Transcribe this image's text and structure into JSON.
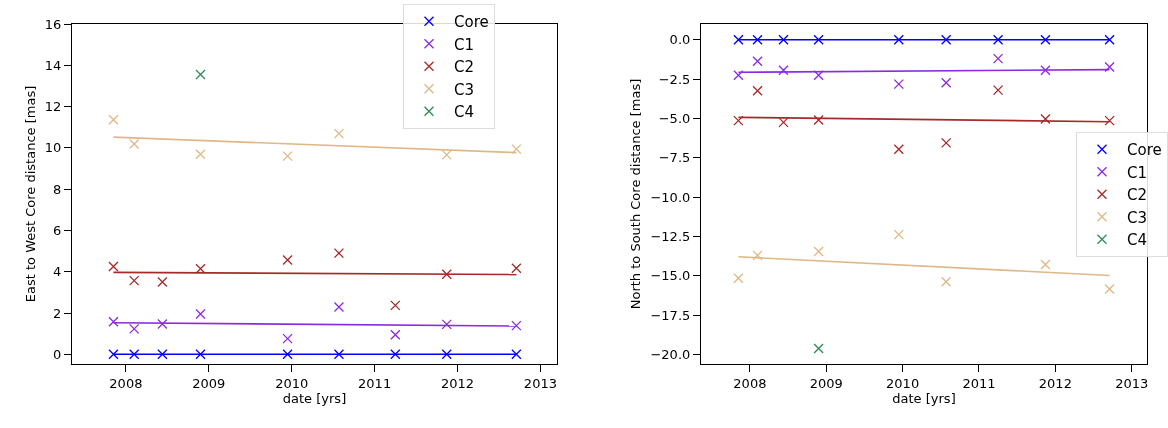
{
  "chart_data": [
    {
      "type": "scatter",
      "xlabel": "date [yrs]",
      "ylabel": "East to West Core distance [mas]",
      "xlim": [
        2007.35,
        2013.2
      ],
      "xticks": [
        2008,
        2009,
        2010,
        2011,
        2012,
        2013
      ],
      "ylim": [
        -0.47,
        16
      ],
      "yticks": [
        0,
        2,
        4,
        6,
        8,
        10,
        12,
        14,
        16
      ],
      "legend": "top right",
      "marker": "cross",
      "series": [
        {
          "name": "Core",
          "color": "#0000ff",
          "x": [
            2007.85,
            2008.1,
            2008.44,
            2008.9,
            2009.95,
            2010.57,
            2011.25,
            2011.87,
            2012.71
          ],
          "values": [
            0,
            0,
            0,
            0,
            0,
            0,
            0,
            0,
            0
          ]
        },
        {
          "name": "C1",
          "color": "#8a2be2",
          "x": [
            2007.85,
            2008.1,
            2008.44,
            2008.9,
            2009.95,
            2010.57,
            2011.25,
            2011.87,
            2012.71
          ],
          "values": [
            1.58,
            1.23,
            1.47,
            1.95,
            0.76,
            2.29,
            0.95,
            1.45,
            1.39
          ]
        },
        {
          "name": "C2",
          "color": "#a52a2a",
          "x": [
            2007.85,
            2008.1,
            2008.44,
            2008.9,
            2009.95,
            2010.57,
            2011.25,
            2011.87,
            2012.71
          ],
          "values": [
            4.25,
            3.57,
            3.5,
            4.14,
            4.57,
            4.9,
            2.37,
            3.88,
            4.17
          ]
        },
        {
          "name": "C3",
          "color": "#deb887",
          "x": [
            2007.85,
            2008.1,
            2008.9,
            2009.95,
            2010.57,
            2011.87,
            2012.71
          ],
          "values": [
            11.36,
            10.19,
            9.69,
            9.6,
            10.69,
            9.66,
            9.94
          ]
        },
        {
          "name": "C4",
          "color": "#2e8b57",
          "x": [
            2008.9
          ],
          "values": [
            13.55
          ]
        },
        {
          "type": "line",
          "marker": "none",
          "color": "#0000ff",
          "x": [
            2007.85,
            2012.71
          ],
          "values": [
            0,
            0
          ]
        },
        {
          "type": "line",
          "marker": "none",
          "color": "#8a2be2",
          "x": [
            2007.85,
            2012.71
          ],
          "values": [
            1.53,
            1.37
          ]
        },
        {
          "type": "line",
          "marker": "none",
          "color": "#a52a2a",
          "x": [
            2007.85,
            2012.71
          ],
          "values": [
            3.97,
            3.86
          ]
        },
        {
          "type": "line",
          "marker": "none",
          "color": "#deb887",
          "x": [
            2007.85,
            2012.71
          ],
          "values": [
            10.52,
            9.77
          ]
        }
      ]
    },
    {
      "type": "scatter",
      "xlabel": "date [yrs]",
      "ylabel": "North to South Core distance [mas]",
      "xlim": [
        2007.36,
        2013.2
      ],
      "xticks": [
        2008,
        2009,
        2010,
        2011,
        2012,
        2013
      ],
      "ylim": [
        -20.6,
        1.0
      ],
      "yticks": [
        {
          "value": 0,
          "label": "0.0"
        },
        {
          "value": -2.5,
          "label": "−2.5"
        },
        {
          "value": -5,
          "label": "−5.0"
        },
        {
          "value": -7.5,
          "label": "−7.5"
        },
        {
          "value": -10,
          "label": "−10.0"
        },
        {
          "value": -12.5,
          "label": "−12.5"
        },
        {
          "value": -15,
          "label": "−15.0"
        },
        {
          "value": -17.5,
          "label": "−17.5"
        },
        {
          "value": -20,
          "label": "−20.0"
        }
      ],
      "legend": "right",
      "marker": "cross",
      "series": [
        {
          "name": "Core",
          "color": "#0000ff",
          "x": [
            2007.85,
            2008.1,
            2008.44,
            2008.9,
            2009.95,
            2010.57,
            2011.25,
            2011.87,
            2012.71
          ],
          "values": [
            0,
            0,
            0,
            0,
            0,
            0,
            0,
            0,
            0
          ]
        },
        {
          "name": "C1",
          "color": "#8a2be2",
          "x": [
            2007.85,
            2008.1,
            2008.44,
            2008.9,
            2009.95,
            2010.57,
            2011.25,
            2011.87,
            2012.71
          ],
          "values": [
            -2.26,
            -1.37,
            -1.94,
            -2.26,
            -2.82,
            -2.73,
            -1.2,
            -1.94,
            -1.73
          ]
        },
        {
          "name": "C2",
          "color": "#a52a2a",
          "x": [
            2007.85,
            2008.1,
            2008.44,
            2008.9,
            2009.95,
            2010.57,
            2011.25,
            2011.87,
            2012.71
          ],
          "values": [
            -5.14,
            -3.24,
            -5.25,
            -5.1,
            -6.96,
            -6.55,
            -3.2,
            -5.04,
            -5.14
          ]
        },
        {
          "name": "C3",
          "color": "#deb887",
          "x": [
            2007.85,
            2008.1,
            2008.9,
            2009.95,
            2010.57,
            2011.87,
            2012.71
          ],
          "values": [
            -15.15,
            -13.7,
            -13.45,
            -12.38,
            -15.37,
            -14.28,
            -15.84
          ]
        },
        {
          "name": "C4",
          "color": "#2e8b57",
          "x": [
            2008.9
          ],
          "values": [
            -19.62
          ]
        },
        {
          "type": "line",
          "marker": "none",
          "color": "#0000ff",
          "x": [
            2007.85,
            2012.71
          ],
          "values": [
            0,
            0
          ]
        },
        {
          "type": "line",
          "marker": "none",
          "color": "#8a2be2",
          "x": [
            2007.85,
            2012.71
          ],
          "values": [
            -2.07,
            -1.9
          ]
        },
        {
          "type": "line",
          "marker": "none",
          "color": "#a52a2a",
          "x": [
            2007.85,
            2012.71
          ],
          "values": [
            -4.93,
            -5.21
          ]
        },
        {
          "type": "line",
          "marker": "none",
          "color": "#deb887",
          "x": [
            2007.85,
            2012.71
          ],
          "values": [
            -13.79,
            -14.98
          ]
        }
      ]
    }
  ]
}
